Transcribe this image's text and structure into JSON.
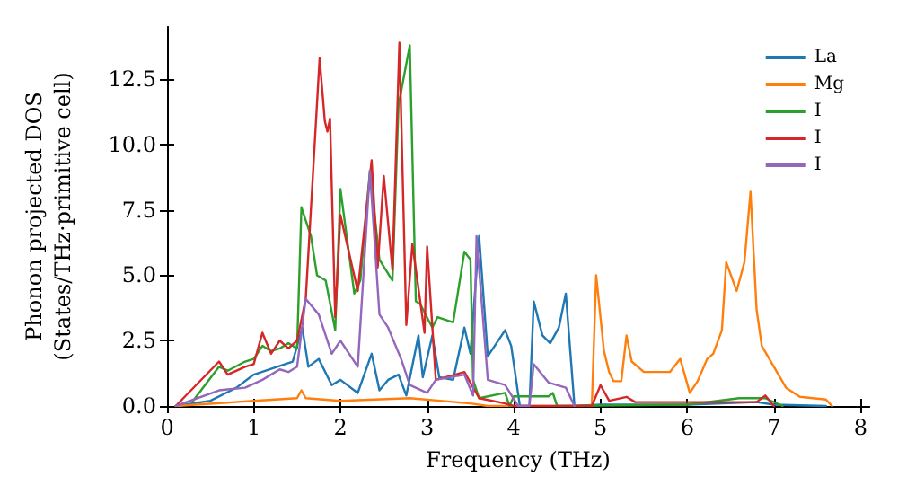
{
  "chart_data": {
    "type": "line",
    "xlabel": "Frequency (THz)",
    "ylabel": "Phonon projected DOS\n(States/THz·primitive cell)",
    "xlim": [
      0,
      8.1
    ],
    "xticks": [
      0,
      1,
      2,
      3,
      4,
      5,
      6,
      7,
      8
    ],
    "ylim": [
      0,
      14.5
    ],
    "yticks": [
      {
        "value": 0,
        "label": "0.0"
      },
      {
        "value": 2.5,
        "label": "2.5"
      },
      {
        "value": 5,
        "label": "5.0"
      },
      {
        "value": 7.5,
        "label": "7.5"
      },
      {
        "value": 10,
        "label": "10.0"
      },
      {
        "value": 12.5,
        "label": "12.5"
      }
    ],
    "grid": false,
    "legend": "top right",
    "marker": "none",
    "line_style": "solid",
    "series": [
      {
        "name": "La",
        "color": "#1f77b4",
        "x": [
          0.1,
          0.5,
          0.8,
          1.0,
          1.27,
          1.45,
          1.56,
          1.63,
          1.75,
          1.9,
          2.0,
          2.2,
          2.36,
          2.45,
          2.55,
          2.67,
          2.76,
          2.9,
          2.95,
          3.06,
          3.14,
          3.3,
          3.43,
          3.5,
          3.6,
          3.7,
          3.9,
          3.97,
          4.07,
          4.18,
          4.23,
          4.33,
          4.42,
          4.52,
          4.6,
          4.7,
          5.0,
          6.0,
          6.8,
          7.0,
          7.6
        ],
        "values": [
          0,
          0.2,
          0.7,
          1.2,
          1.5,
          1.7,
          3.0,
          1.5,
          1.8,
          0.8,
          1.0,
          0.5,
          2.0,
          0.6,
          1.0,
          1.2,
          0.4,
          2.7,
          1.1,
          2.7,
          1.1,
          1.0,
          3.0,
          2.0,
          6.5,
          1.9,
          2.9,
          2.3,
          0,
          0,
          4.0,
          2.7,
          2.4,
          3.0,
          4.3,
          0,
          0.05,
          0.05,
          0.15,
          0.05,
          0
        ]
      },
      {
        "name": "Mg",
        "color": "#ff7f0e",
        "x": [
          0.1,
          1.0,
          1.5,
          1.55,
          1.6,
          2.0,
          2.8,
          3.5,
          3.7,
          4.9,
          4.95,
          5.04,
          5.1,
          5.15,
          5.24,
          5.3,
          5.36,
          5.5,
          5.8,
          5.92,
          6.03,
          6.12,
          6.23,
          6.3,
          6.4,
          6.45,
          6.57,
          6.66,
          6.73,
          6.8,
          6.86,
          7.0,
          7.14,
          7.3,
          7.6,
          7.67
        ],
        "values": [
          0,
          0.2,
          0.3,
          0.6,
          0.3,
          0.2,
          0.3,
          0.1,
          0,
          0,
          5.0,
          2.1,
          1.3,
          0.95,
          0.95,
          2.7,
          1.7,
          1.3,
          1.3,
          1.8,
          0.5,
          0.95,
          1.8,
          2.0,
          2.9,
          5.5,
          4.4,
          5.5,
          8.2,
          3.7,
          2.3,
          1.5,
          0.7,
          0.35,
          0.25,
          0
        ]
      },
      {
        "name": "I",
        "color": "#2ca02c",
        "x": [
          0.3,
          0.6,
          0.7,
          0.9,
          1.0,
          1.1,
          1.2,
          1.3,
          1.4,
          1.5,
          1.55,
          1.66,
          1.73,
          1.83,
          1.94,
          2.0,
          2.16,
          2.23,
          2.34,
          2.45,
          2.6,
          2.67,
          2.8,
          2.87,
          2.92,
          3.06,
          3.12,
          3.3,
          3.43,
          3.5,
          3.53,
          3.6,
          3.9,
          3.95,
          4.0,
          4.4,
          4.45,
          4.5,
          6.0,
          6.6,
          6.9,
          7.1
        ],
        "values": [
          0.2,
          1.5,
          1.35,
          1.7,
          1.8,
          2.3,
          2.1,
          2.2,
          2.4,
          2.2,
          7.6,
          6.5,
          5.0,
          4.8,
          2.9,
          8.3,
          4.3,
          4.8,
          9.0,
          5.6,
          4.8,
          11.5,
          13.8,
          4.0,
          3.9,
          3.0,
          3.4,
          3.2,
          5.9,
          5.6,
          1.0,
          0.3,
          0.5,
          0,
          0.37,
          0.37,
          0.5,
          0,
          0.05,
          0.3,
          0.3,
          0
        ]
      },
      {
        "name": "I",
        "color": "#d62728",
        "x": [
          0.1,
          0.6,
          0.7,
          0.9,
          1.0,
          1.1,
          1.2,
          1.3,
          1.4,
          1.5,
          1.6,
          1.76,
          1.82,
          1.85,
          1.88,
          1.94,
          2.0,
          2.2,
          2.36,
          2.43,
          2.5,
          2.6,
          2.68,
          2.76,
          2.83,
          2.97,
          3.0,
          3.1,
          3.43,
          3.6,
          3.9,
          4.0,
          4.9,
          5.0,
          5.1,
          5.3,
          5.4,
          6.0,
          6.8,
          6.9,
          7.0
        ],
        "values": [
          0,
          1.7,
          1.2,
          1.5,
          1.6,
          2.8,
          2.0,
          2.5,
          2.2,
          2.5,
          4.1,
          13.3,
          10.9,
          10.5,
          11.0,
          3.4,
          7.3,
          4.4,
          9.4,
          5.3,
          8.8,
          5.2,
          13.9,
          3.1,
          6.2,
          2.8,
          6.1,
          1.0,
          1.3,
          0.3,
          0.1,
          0,
          0,
          0.8,
          0.2,
          0.35,
          0.15,
          0.15,
          0.15,
          0.4,
          0
        ]
      },
      {
        "name": "I",
        "color": "#9467bd",
        "x": [
          0.1,
          0.6,
          0.9,
          1.1,
          1.3,
          1.4,
          1.5,
          1.6,
          1.75,
          1.9,
          2.0,
          2.2,
          2.34,
          2.45,
          2.55,
          2.7,
          2.8,
          3.0,
          3.1,
          3.43,
          3.53,
          3.57,
          3.7,
          3.9,
          4.05,
          4.18,
          4.23,
          4.4,
          4.6,
          4.7
        ],
        "values": [
          0,
          0.6,
          0.7,
          1.0,
          1.4,
          1.3,
          1.5,
          4.1,
          3.5,
          2.0,
          2.5,
          1.5,
          9.0,
          3.5,
          3.0,
          1.8,
          0.8,
          0.5,
          1.0,
          1.2,
          0.4,
          6.5,
          1.0,
          0.8,
          0,
          0,
          1.6,
          0.9,
          0.7,
          0
        ]
      }
    ]
  }
}
